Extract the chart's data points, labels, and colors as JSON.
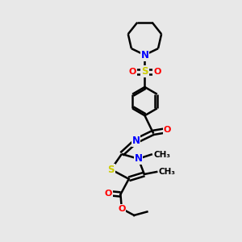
{
  "background_color": "#e8e8e8",
  "bond_color": "#000000",
  "N_color": "#0000ff",
  "O_color": "#ff0000",
  "S_color": "#cccc00",
  "line_width": 1.8,
  "fig_width": 3.0,
  "fig_height": 3.0,
  "dpi": 100,
  "xlim": [
    0,
    10
  ],
  "ylim": [
    0,
    10
  ]
}
